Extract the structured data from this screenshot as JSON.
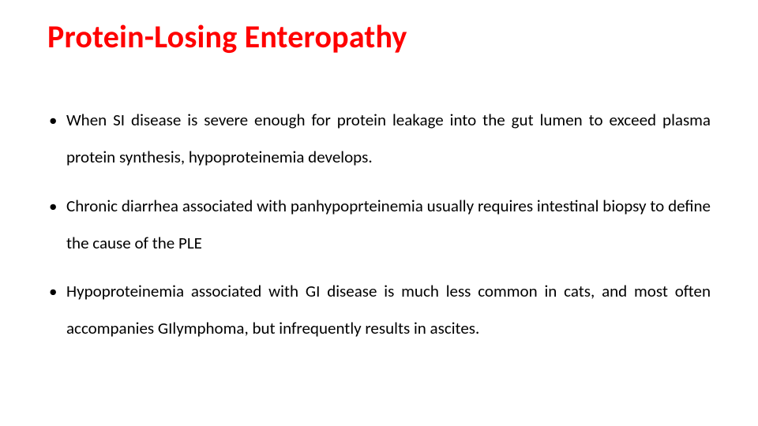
{
  "title": "Protein-Losing Enteropathy",
  "title_color": "#ff0000",
  "title_fontsize": 40,
  "body_fontsize": 21,
  "body_color": "#000000",
  "background_color": "#ffffff",
  "bullets": [
    "When SI disease is severe enough for protein leakage into the gut lumen to exceed plasma protein synthesis, hypoproteinemia develops.",
    "Chronic diarrhea associated with panhypoprteinemia usually requires intestinal biopsy to define the cause of the PLE",
    "Hypoproteinemia associated with GI disease is much less common in cats, and most often accompanies GIlymphoma, but infrequently results in ascites."
  ]
}
